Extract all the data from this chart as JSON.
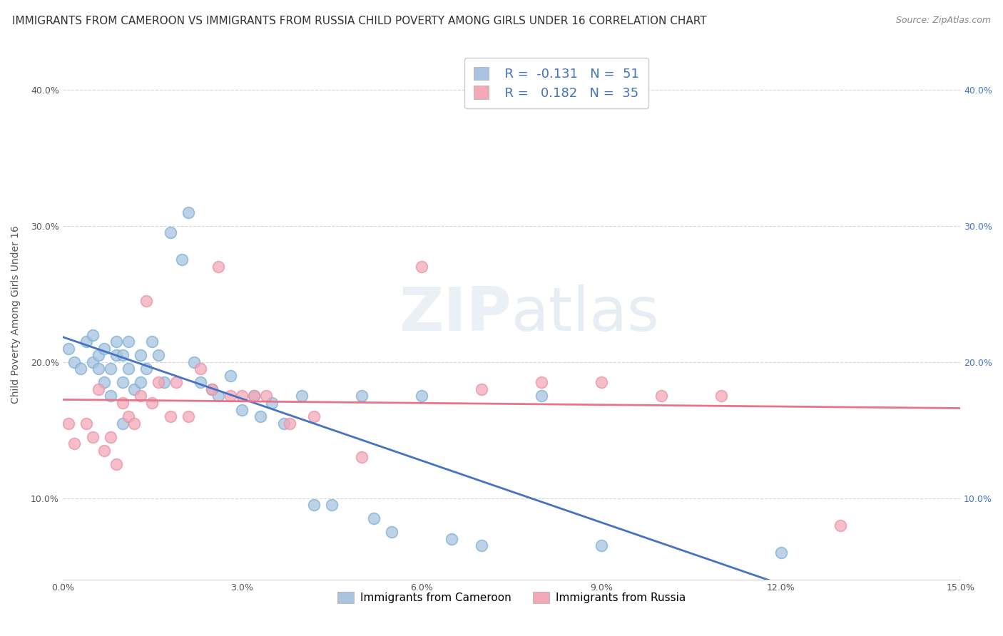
{
  "title": "IMMIGRANTS FROM CAMEROON VS IMMIGRANTS FROM RUSSIA CHILD POVERTY AMONG GIRLS UNDER 16 CORRELATION CHART",
  "source": "Source: ZipAtlas.com",
  "ylabel": "Child Poverty Among Girls Under 16",
  "watermark": "ZIPatlas",
  "xlim": [
    0.0,
    0.15
  ],
  "ylim": [
    0.04,
    0.43
  ],
  "xticks": [
    0.0,
    0.03,
    0.06,
    0.09,
    0.12,
    0.15
  ],
  "xtick_labels": [
    "0.0%",
    "3.0%",
    "6.0%",
    "9.0%",
    "12.0%",
    "15.0%"
  ],
  "yticks": [
    0.1,
    0.2,
    0.3,
    0.4
  ],
  "ytick_labels": [
    "10.0%",
    "20.0%",
    "30.0%",
    "40.0%"
  ],
  "blue_color": "#a8c4e0",
  "pink_color": "#f4a8b8",
  "blue_line_color": "#4472c4",
  "pink_line_color": "#e8748a",
  "R_blue": -0.131,
  "R_pink": 0.182,
  "N_blue": 51,
  "N_pink": 35,
  "legend_color": "#4472c4",
  "blue_scatter_x": [
    0.001,
    0.002,
    0.003,
    0.004,
    0.005,
    0.005,
    0.006,
    0.006,
    0.007,
    0.007,
    0.008,
    0.008,
    0.009,
    0.009,
    0.01,
    0.01,
    0.01,
    0.011,
    0.011,
    0.012,
    0.013,
    0.013,
    0.014,
    0.015,
    0.016,
    0.017,
    0.018,
    0.02,
    0.021,
    0.022,
    0.023,
    0.025,
    0.026,
    0.028,
    0.03,
    0.032,
    0.033,
    0.035,
    0.037,
    0.04,
    0.042,
    0.045,
    0.05,
    0.052,
    0.055,
    0.06,
    0.065,
    0.07,
    0.08,
    0.09,
    0.12
  ],
  "blue_scatter_y": [
    0.21,
    0.2,
    0.195,
    0.215,
    0.2,
    0.22,
    0.195,
    0.205,
    0.185,
    0.21,
    0.175,
    0.195,
    0.205,
    0.215,
    0.155,
    0.185,
    0.205,
    0.195,
    0.215,
    0.18,
    0.205,
    0.185,
    0.195,
    0.215,
    0.205,
    0.185,
    0.295,
    0.275,
    0.31,
    0.2,
    0.185,
    0.18,
    0.175,
    0.19,
    0.165,
    0.175,
    0.16,
    0.17,
    0.155,
    0.175,
    0.095,
    0.095,
    0.175,
    0.085,
    0.075,
    0.175,
    0.07,
    0.065,
    0.175,
    0.065,
    0.06
  ],
  "pink_scatter_x": [
    0.001,
    0.002,
    0.004,
    0.005,
    0.006,
    0.007,
    0.008,
    0.009,
    0.01,
    0.011,
    0.012,
    0.013,
    0.014,
    0.015,
    0.016,
    0.018,
    0.019,
    0.021,
    0.023,
    0.025,
    0.026,
    0.028,
    0.03,
    0.032,
    0.034,
    0.038,
    0.042,
    0.05,
    0.06,
    0.07,
    0.08,
    0.09,
    0.1,
    0.11,
    0.13
  ],
  "pink_scatter_y": [
    0.155,
    0.14,
    0.155,
    0.145,
    0.18,
    0.135,
    0.145,
    0.125,
    0.17,
    0.16,
    0.155,
    0.175,
    0.245,
    0.17,
    0.185,
    0.16,
    0.185,
    0.16,
    0.195,
    0.18,
    0.27,
    0.175,
    0.175,
    0.175,
    0.175,
    0.155,
    0.16,
    0.13,
    0.27,
    0.18,
    0.185,
    0.185,
    0.175,
    0.175,
    0.08
  ],
  "grid_color": "#cccccc",
  "background_color": "#ffffff",
  "title_fontsize": 11,
  "axis_fontsize": 10,
  "tick_fontsize": 9
}
